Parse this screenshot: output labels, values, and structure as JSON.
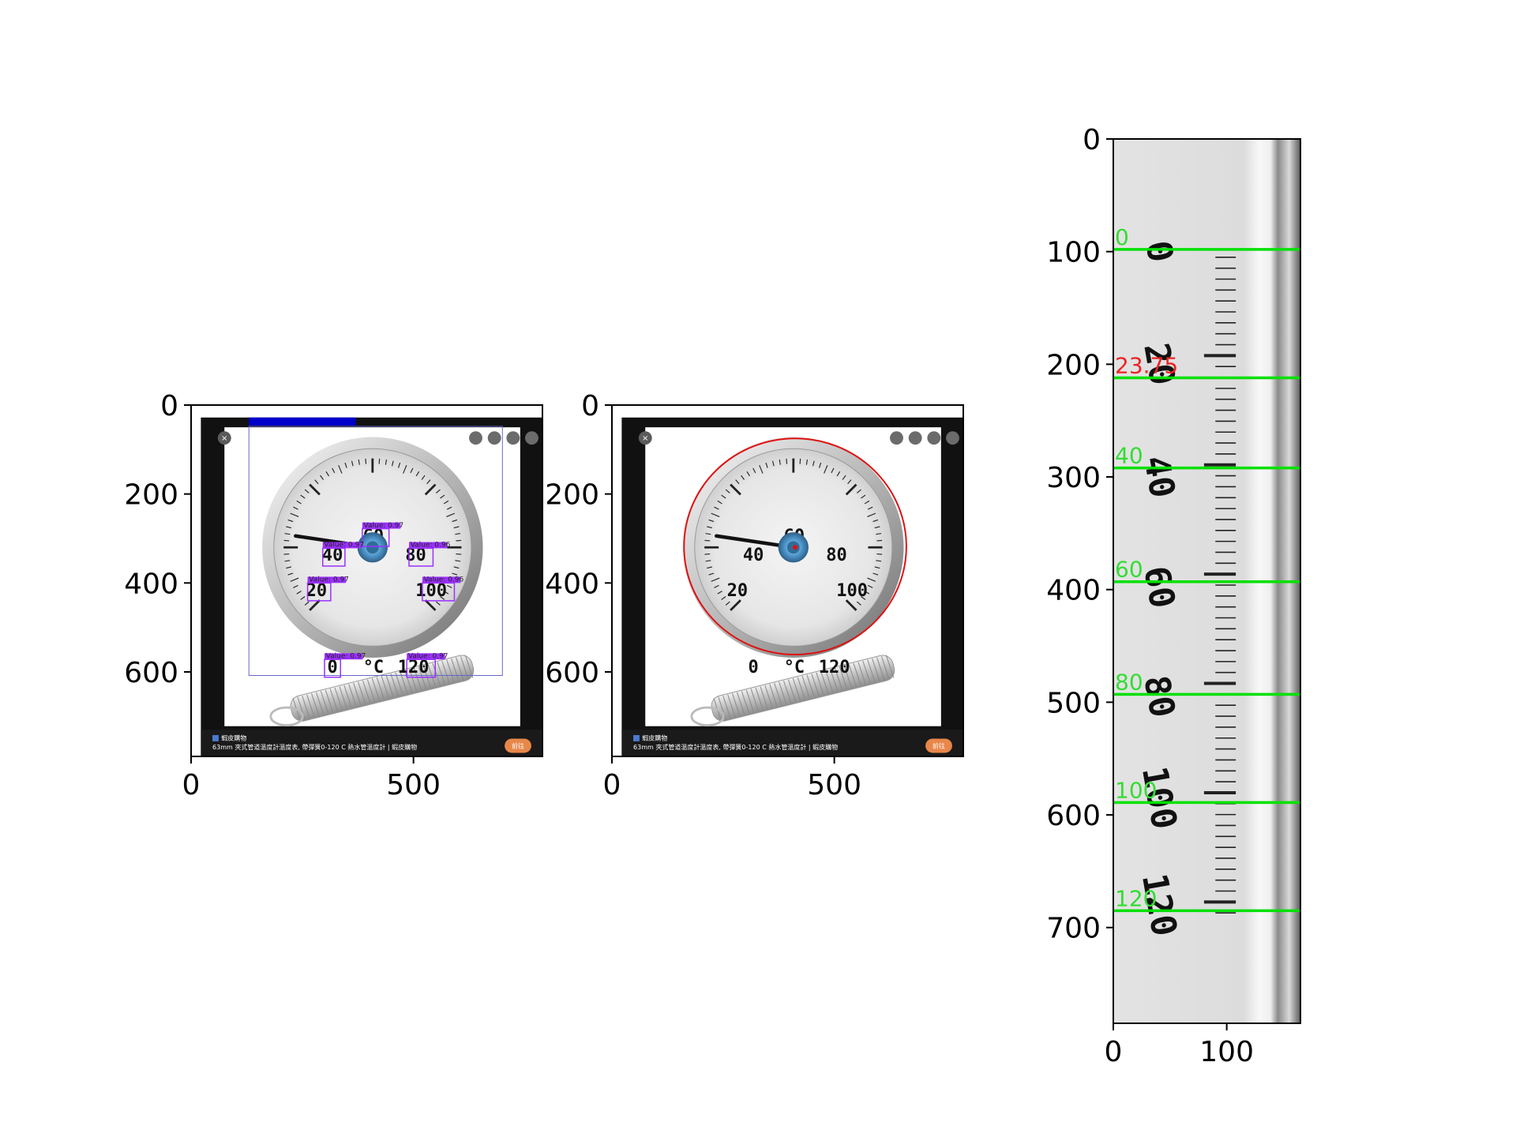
{
  "colors": {
    "detection_box": "#9b30ff",
    "circle_fit": "#e01010",
    "scale_line": "#00e000",
    "scale_label": "#33dd33",
    "reading_label": "#ee2222",
    "bbox_outline": "#6666cc",
    "bbox_header": "#0000cc",
    "button_accent": "#e8874a"
  },
  "icons": [
    "close-icon",
    "zoom-icon",
    "more-icon",
    "prev-icon",
    "next-icon",
    "favicon-icon"
  ],
  "chart_data": [
    {
      "type": "image",
      "panel": "detection",
      "xticks": [
        0,
        500
      ],
      "yticks": [
        0,
        200,
        400,
        600
      ],
      "xlim": [
        0,
        790
      ],
      "ylim": [
        790,
        0
      ],
      "caption_source": "蝦皮購物",
      "caption_title": "63mm 夾式管道溫度計溫度表, 帶彈簧0-120 C 熱水管溫度計 | 蝦皮購物",
      "button_label": "前往",
      "dial_numbers": [
        "0",
        "20",
        "40",
        "60",
        "80",
        "100",
        "120"
      ],
      "unit_label": "°C",
      "detections": [
        {
          "label": "Value: 0.97",
          "value": "60"
        },
        {
          "label": "Value: 0.97",
          "value": "40"
        },
        {
          "label": "Value: 0.96",
          "value": "80"
        },
        {
          "label": "Value: 0.97",
          "value": "20"
        },
        {
          "label": "Value: 0.96",
          "value": "100"
        },
        {
          "label": "Value: 0.97",
          "value": "0"
        },
        {
          "label": "Value: 0.97",
          "value": "120"
        }
      ]
    },
    {
      "type": "image",
      "panel": "circle-fit",
      "xticks": [
        0,
        500
      ],
      "yticks": [
        0,
        200,
        400,
        600
      ],
      "xlim": [
        0,
        790
      ],
      "ylim": [
        790,
        0
      ],
      "caption_source": "蝦皮購物",
      "caption_title": "63mm 夾式管道溫度計溫度表, 帶彈簧0-120 C 熱水管溫度計 | 蝦皮購物",
      "button_label": "前往",
      "dial_numbers": [
        "0",
        "20",
        "40",
        "60",
        "80",
        "100",
        "120"
      ],
      "unit_label": "°C"
    },
    {
      "type": "image",
      "panel": "unwrapped-scale",
      "xticks": [
        0,
        100
      ],
      "yticks": [
        0,
        100,
        200,
        300,
        400,
        500,
        600,
        700
      ],
      "xlim": [
        0,
        165
      ],
      "ylim": [
        785,
        0
      ],
      "scale_marks": [
        {
          "label": "0",
          "y": 98
        },
        {
          "label": "40",
          "y": 292
        },
        {
          "label": "60",
          "y": 393
        },
        {
          "label": "80",
          "y": 493
        },
        {
          "label": "100",
          "y": 589
        },
        {
          "label": "120",
          "y": 685
        }
      ],
      "reading": {
        "label": "23.75",
        "y": 212
      },
      "strip_numbers": [
        "0",
        "20",
        "40",
        "60",
        "80",
        "100",
        "120"
      ]
    }
  ]
}
